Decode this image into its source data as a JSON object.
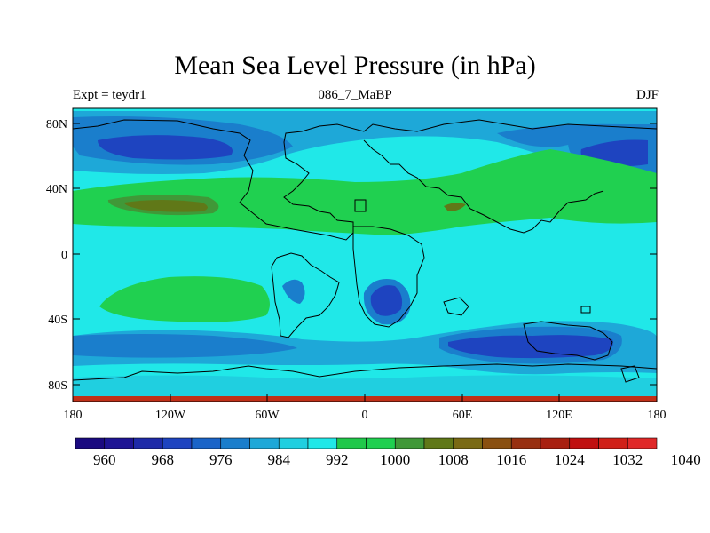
{
  "title": "Mean Sea Level Pressure (in hPa)",
  "subtitle_left": "Expt = teydr1",
  "subtitle_center": "086_7_MaBP",
  "subtitle_right": "DJF",
  "y_ticks": [
    "80N",
    "40N",
    "0",
    "40S",
    "80S"
  ],
  "x_ticks": [
    "180",
    "120W",
    "60W",
    "0",
    "60E",
    "120E",
    "180"
  ],
  "colorbar": {
    "labels": [
      "960",
      "968",
      "976",
      "984",
      "992",
      "1000",
      "1008",
      "1016",
      "1024",
      "1032",
      "1040"
    ],
    "colors": [
      "#1a0a80",
      "#1e1494",
      "#1e2aa8",
      "#1e44c0",
      "#1a64c8",
      "#1a7ecc",
      "#1ea8d8",
      "#20cfe0",
      "#20e8e8",
      "#20c84a",
      "#20d050",
      "#409838",
      "#607818",
      "#7a6a14",
      "#8a5010",
      "#983010",
      "#a82010",
      "#c01010",
      "#d02018",
      "#e02828"
    ]
  },
  "colors": {
    "background_field": "#20e8e8",
    "band_green": "#20d050",
    "deep_blue": "#1a44c0",
    "mid_blue": "#1a7ecc",
    "olive": "#607818",
    "land_outline": "#000000"
  }
}
